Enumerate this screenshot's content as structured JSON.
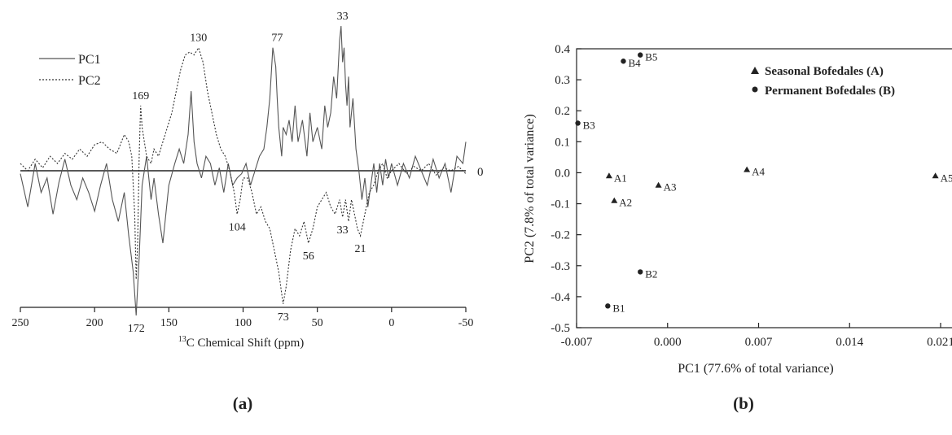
{
  "panels": {
    "a": {
      "label": "(a)"
    },
    "b": {
      "label": "(b)"
    }
  },
  "chart_data": [
    {
      "type": "line",
      "panel": "a",
      "xlabel_prefix": "13",
      "xlabel": "C Chemical Shift (ppm)",
      "ylabel": "",
      "xlim": [
        250,
        -50
      ],
      "x_reversed": true,
      "x_ticks": [
        250,
        200,
        150,
        100,
        50,
        0,
        -50
      ],
      "x_tick_labels": [
        "250",
        "200",
        "150",
        "100",
        "50",
        "0",
        "-50"
      ],
      "ylim": [
        -1,
        1
      ],
      "zero_line_label": "0",
      "legend": {
        "position": "top-left",
        "entries": [
          "PC1",
          "PC2"
        ]
      },
      "series": [
        {
          "name": "PC1",
          "style": "solid",
          "color": "#555555",
          "x": [
            250,
            245,
            240,
            236,
            232,
            228,
            224,
            220,
            216,
            212,
            208,
            204,
            200,
            196,
            192,
            188,
            184,
            180,
            177,
            174,
            172,
            170,
            168,
            165,
            162,
            160,
            157,
            154,
            150,
            146,
            143,
            140,
            137,
            135,
            133,
            131,
            128,
            125,
            122,
            119,
            116,
            113,
            110,
            107,
            104,
            101,
            98,
            95,
            92,
            89,
            86,
            84,
            82,
            80,
            78,
            77,
            76,
            74,
            73,
            71,
            69,
            67,
            65,
            63,
            60,
            57,
            55,
            53,
            50,
            47,
            45,
            43,
            41,
            39,
            37,
            35,
            34,
            33,
            32,
            31,
            30,
            29,
            28,
            26,
            24,
            22,
            20,
            18,
            16,
            14,
            12,
            10,
            8,
            6,
            4,
            2,
            0,
            -4,
            -8,
            -12,
            -16,
            -20,
            -24,
            -28,
            -32,
            -36,
            -40,
            -44,
            -48,
            -50
          ],
          "y": [
            -0.02,
            -0.25,
            0.05,
            -0.15,
            -0.05,
            -0.3,
            -0.08,
            0.08,
            -0.1,
            -0.2,
            -0.05,
            -0.15,
            -0.28,
            -0.1,
            0.05,
            -0.2,
            -0.35,
            -0.15,
            -0.45,
            -0.7,
            -1.0,
            -0.6,
            -0.1,
            0.1,
            -0.2,
            -0.05,
            -0.3,
            -0.5,
            -0.1,
            0.05,
            0.15,
            0.05,
            0.25,
            0.55,
            0.2,
            0.05,
            -0.05,
            0.1,
            0.05,
            -0.1,
            0.02,
            -0.15,
            0.05,
            -0.1,
            -0.05,
            -0.02,
            0.05,
            -0.1,
            0.0,
            0.1,
            0.15,
            0.3,
            0.5,
            0.85,
            0.72,
            0.5,
            0.3,
            0.1,
            0.3,
            0.25,
            0.35,
            0.2,
            0.45,
            0.2,
            0.35,
            0.1,
            0.4,
            0.2,
            0.3,
            0.15,
            0.45,
            0.3,
            0.4,
            0.65,
            0.5,
            0.9,
            1.0,
            0.75,
            0.85,
            0.6,
            0.45,
            0.65,
            0.3,
            0.5,
            0.15,
            0.0,
            -0.2,
            -0.05,
            -0.25,
            -0.1,
            0.05,
            -0.15,
            0.05,
            -0.1,
            0.08,
            -0.05,
            0.05,
            -0.1,
            0.05,
            -0.05,
            0.1,
            0.0,
            -0.1,
            0.08,
            -0.05,
            0.05,
            -0.15,
            0.1,
            0.05,
            0.2
          ]
        },
        {
          "name": "PC2",
          "style": "dashed",
          "color": "#333333",
          "x": [
            250,
            245,
            240,
            235,
            230,
            225,
            220,
            215,
            210,
            205,
            200,
            195,
            190,
            185,
            180,
            177,
            175,
            173,
            172,
            171,
            170,
            169,
            168,
            165,
            162,
            160,
            157,
            154,
            151,
            148,
            145,
            142,
            139,
            136,
            133,
            130,
            127,
            124,
            121,
            118,
            115,
            112,
            109,
            106,
            104,
            102,
            100,
            97,
            94,
            91,
            88,
            85,
            82,
            79,
            76,
            74,
            73,
            71,
            68,
            65,
            62,
            59,
            56,
            53,
            50,
            47,
            44,
            41,
            38,
            35,
            33,
            31,
            29,
            27,
            25,
            23,
            21,
            19,
            17,
            15,
            12,
            9,
            6,
            3,
            0,
            -5,
            -10,
            -15,
            -20,
            -25,
            -30,
            -35,
            -40,
            -45,
            -50
          ],
          "y": [
            0.05,
            0.0,
            0.08,
            0.02,
            0.1,
            0.05,
            0.12,
            0.08,
            0.15,
            0.1,
            0.18,
            0.2,
            0.15,
            0.12,
            0.25,
            0.2,
            0.1,
            -0.3,
            -0.75,
            -0.5,
            0.1,
            0.45,
            0.3,
            0.1,
            0.05,
            0.15,
            0.1,
            0.2,
            0.3,
            0.4,
            0.55,
            0.7,
            0.8,
            0.82,
            0.8,
            0.85,
            0.75,
            0.55,
            0.4,
            0.25,
            0.15,
            0.1,
            0.0,
            -0.15,
            -0.3,
            -0.2,
            -0.05,
            -0.05,
            -0.15,
            -0.3,
            -0.25,
            -0.35,
            -0.4,
            -0.55,
            -0.7,
            -0.85,
            -0.92,
            -0.8,
            -0.55,
            -0.4,
            -0.45,
            -0.35,
            -0.5,
            -0.4,
            -0.25,
            -0.2,
            -0.15,
            -0.25,
            -0.3,
            -0.2,
            -0.32,
            -0.2,
            -0.35,
            -0.2,
            -0.3,
            -0.4,
            -0.45,
            -0.35,
            -0.25,
            -0.15,
            -0.1,
            0.0,
            0.05,
            -0.05,
            0.0,
            0.05,
            -0.02,
            0.03,
            0.0,
            0.05,
            -0.03,
            0.02,
            0.0,
            0.03,
            -0.02
          ]
        }
      ],
      "annotations": [
        {
          "text": "33",
          "x": 33,
          "y": 1.0,
          "pos": "above"
        },
        {
          "text": "77",
          "x": 77,
          "y": 0.85,
          "pos": "above"
        },
        {
          "text": "130",
          "x": 130,
          "y": 0.85,
          "pos": "above"
        },
        {
          "text": "169",
          "x": 169,
          "y": 0.45,
          "pos": "above"
        },
        {
          "text": "172",
          "x": 172,
          "y": -1.0,
          "pos": "below"
        },
        {
          "text": "104",
          "x": 104,
          "y": -0.3,
          "pos": "below"
        },
        {
          "text": "73",
          "x": 73,
          "y": -0.92,
          "pos": "below"
        },
        {
          "text": "56",
          "x": 56,
          "y": -0.5,
          "pos": "below"
        },
        {
          "text": "33",
          "x": 33,
          "y": -0.32,
          "pos": "below"
        },
        {
          "text": "21",
          "x": 21,
          "y": -0.45,
          "pos": "below"
        }
      ]
    },
    {
      "type": "scatter",
      "panel": "b",
      "xlabel": "PC1 (77.6% of total variance)",
      "ylabel": "PC2 (7.8% of total variance)",
      "xlim": [
        -0.007,
        0.021
      ],
      "ylim": [
        -0.5,
        0.4
      ],
      "x_ticks": [
        -0.007,
        0.0,
        0.007,
        0.014,
        0.021
      ],
      "x_tick_labels": [
        "-0.007",
        "0.000",
        "0.007",
        "0.014",
        "0.021"
      ],
      "y_ticks": [
        0.4,
        0.3,
        0.2,
        0.1,
        0.0,
        -0.1,
        -0.2,
        -0.3,
        -0.4,
        -0.5
      ],
      "y_tick_labels": [
        "0.4",
        "0.3",
        "0.2",
        "0.1",
        "0.0",
        "-0.1",
        "-0.2",
        "-0.3",
        "-0.4",
        "-0.5"
      ],
      "legend": {
        "position": "top-right"
      },
      "series": [
        {
          "name": "Seasonal Bofedales (A)",
          "marker": "triangle",
          "color": "#222222",
          "points": [
            {
              "label": "A1",
              "x": -0.0045,
              "y": -0.01
            },
            {
              "label": "A2",
              "x": -0.0041,
              "y": -0.09
            },
            {
              "label": "A3",
              "x": -0.0007,
              "y": -0.04
            },
            {
              "label": "A4",
              "x": 0.0061,
              "y": 0.01
            },
            {
              "label": "A5",
              "x": 0.0206,
              "y": -0.01
            }
          ]
        },
        {
          "name": "Permanent Bofedales (B)",
          "marker": "circle",
          "color": "#222222",
          "points": [
            {
              "label": "B1",
              "x": -0.0046,
              "y": -0.43
            },
            {
              "label": "B2",
              "x": -0.0021,
              "y": -0.32
            },
            {
              "label": "B3",
              "x": -0.0069,
              "y": 0.16
            },
            {
              "label": "B4",
              "x": -0.0034,
              "y": 0.36
            },
            {
              "label": "B5",
              "x": -0.0021,
              "y": 0.38
            }
          ]
        }
      ]
    }
  ]
}
